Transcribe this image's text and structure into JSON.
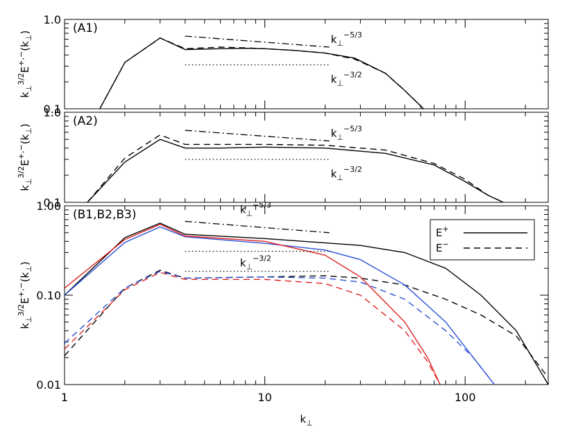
{
  "chart_data": [
    {
      "type": "line",
      "panel_label": "(A1)",
      "ylabel": {
        "base": "k",
        "sub": "⊥",
        "sup": "3/2",
        "rest": "E",
        "rest_sup": "+,−",
        "arg_open": "(k",
        "arg_sub": "⊥",
        "arg_close": ")"
      },
      "xscale": "log",
      "yscale": "log",
      "xlim": [
        1,
        260
      ],
      "ylim": [
        0.1,
        1.0
      ],
      "yticks": [
        {
          "value": 0.1,
          "label": "0.1"
        },
        {
          "value": 1.0,
          "label": "1.0"
        }
      ],
      "series": [
        {
          "name": "E+",
          "style": "solid",
          "color": "#000000",
          "x": [
            1.5,
            2,
            3,
            4,
            6,
            8,
            10,
            14,
            20,
            28,
            40,
            50,
            62
          ],
          "y": [
            0.1,
            0.33,
            0.62,
            0.46,
            0.47,
            0.475,
            0.47,
            0.45,
            0.42,
            0.37,
            0.25,
            0.16,
            0.1
          ]
        },
        {
          "name": "E-",
          "style": "dashed",
          "color": "#000000",
          "x": [
            1.5,
            2,
            3,
            4,
            6,
            8,
            10,
            14,
            20,
            28,
            40,
            50,
            62
          ],
          "y": [
            0.1,
            0.33,
            0.62,
            0.47,
            0.49,
            0.48,
            0.47,
            0.45,
            0.42,
            0.36,
            0.25,
            0.16,
            0.1
          ]
        }
      ],
      "reference_lines": [
        {
          "label_base": "k",
          "label_sub": "⊥",
          "label_sup": "−5/3",
          "style": "dashdot",
          "x": [
            4,
            21
          ],
          "y": [
            0.65,
            0.49
          ]
        },
        {
          "label_base": "k",
          "label_sub": "⊥",
          "label_sup": "−3/2",
          "style": "dotted",
          "x": [
            4,
            21
          ],
          "y": [
            0.31,
            0.31
          ]
        }
      ]
    },
    {
      "type": "line",
      "panel_label": "(A2)",
      "ylabel": {
        "base": "k",
        "sub": "⊥",
        "sup": "3/2",
        "rest": "E",
        "rest_sup": "+,−",
        "arg_open": "(k",
        "arg_sub": "⊥",
        "arg_close": ")"
      },
      "xscale": "log",
      "yscale": "log",
      "xlim": [
        1,
        260
      ],
      "ylim": [
        0.1,
        1.0
      ],
      "yticks": [
        {
          "value": 0.1,
          "label": "0.1"
        },
        {
          "value": 1.0,
          "label": "1.0"
        }
      ],
      "series": [
        {
          "name": "E+",
          "style": "solid",
          "color": "#000000",
          "x": [
            1.3,
            2,
            3,
            4,
            6,
            10,
            20,
            40,
            70,
            100,
            130,
            155
          ],
          "y": [
            0.1,
            0.28,
            0.5,
            0.4,
            0.4,
            0.41,
            0.4,
            0.35,
            0.26,
            0.17,
            0.12,
            0.1
          ]
        },
        {
          "name": "E-",
          "style": "dashed",
          "color": "#000000",
          "x": [
            1.3,
            2,
            3,
            4,
            6,
            10,
            20,
            40,
            70,
            100,
            130,
            155
          ],
          "y": [
            0.1,
            0.31,
            0.56,
            0.44,
            0.44,
            0.44,
            0.43,
            0.38,
            0.27,
            0.18,
            0.12,
            0.1
          ]
        }
      ],
      "reference_lines": [
        {
          "label_base": "k",
          "label_sub": "⊥",
          "label_sup": "−5/3",
          "style": "dashdot",
          "x": [
            4,
            21
          ],
          "y": [
            0.63,
            0.48
          ]
        },
        {
          "label_base": "k",
          "label_sub": "⊥",
          "label_sup": "−3/2",
          "style": "dotted",
          "x": [
            4,
            21
          ],
          "y": [
            0.3,
            0.3
          ]
        }
      ]
    },
    {
      "type": "line",
      "panel_label": "(B1,B2,B3)",
      "ylabel": {
        "base": "k",
        "sub": "⊥",
        "sup": "3/2",
        "rest": "E",
        "rest_sup": "+,−",
        "arg_open": "(k",
        "arg_sub": "⊥",
        "arg_close": ")"
      },
      "xlabel": {
        "base": "k",
        "sub": "⊥"
      },
      "xscale": "log",
      "yscale": "log",
      "xlim": [
        1,
        260
      ],
      "ylim": [
        0.01,
        1.0
      ],
      "xticks": [
        {
          "value": 1,
          "label": "1"
        },
        {
          "value": 10,
          "label": "10"
        },
        {
          "value": 100,
          "label": "100"
        }
      ],
      "yticks": [
        {
          "value": 0.01,
          "label": "0.01"
        },
        {
          "value": 0.1,
          "label": "0.10"
        },
        {
          "value": 1.0,
          "label": "1.00"
        }
      ],
      "legend": {
        "position": "top-right",
        "entries": [
          {
            "name": "E",
            "sup": "+",
            "style": "solid"
          },
          {
            "name": "E",
            "sup": "−",
            "style": "dashed"
          }
        ]
      },
      "series": [
        {
          "name": "B1 E+",
          "style": "solid",
          "color": "#000000",
          "x": [
            1,
            2,
            3,
            4,
            10,
            30,
            50,
            80,
            120,
            180,
            260
          ],
          "y": [
            0.1,
            0.44,
            0.64,
            0.48,
            0.43,
            0.36,
            0.3,
            0.2,
            0.1,
            0.04,
            0.01
          ]
        },
        {
          "name": "B1 E-",
          "style": "dashed",
          "color": "#000000",
          "x": [
            1,
            2,
            3,
            4,
            10,
            20,
            30,
            50,
            80,
            120,
            180,
            260
          ],
          "y": [
            0.021,
            0.12,
            0.19,
            0.155,
            0.16,
            0.165,
            0.155,
            0.13,
            0.09,
            0.06,
            0.035,
            0.012
          ]
        },
        {
          "name": "B2 E+",
          "style": "solid",
          "color": "#2b4fd8",
          "x": [
            1,
            2,
            3,
            4,
            10,
            20,
            30,
            50,
            80,
            110,
            140
          ],
          "y": [
            0.1,
            0.39,
            0.58,
            0.45,
            0.38,
            0.32,
            0.25,
            0.13,
            0.05,
            0.02,
            0.01
          ]
        },
        {
          "name": "B2 E-",
          "style": "dashed",
          "color": "#2b4fd8",
          "x": [
            1,
            2,
            3,
            4,
            10,
            20,
            30,
            50,
            80,
            110,
            140
          ],
          "y": [
            0.029,
            0.12,
            0.185,
            0.155,
            0.16,
            0.155,
            0.14,
            0.09,
            0.04,
            0.02,
            0.01
          ]
        },
        {
          "name": "B3 E+",
          "style": "solid",
          "color": "#e02020",
          "x": [
            1,
            2,
            3,
            4,
            10,
            20,
            30,
            50,
            65,
            75
          ],
          "y": [
            0.12,
            0.42,
            0.62,
            0.46,
            0.4,
            0.28,
            0.16,
            0.05,
            0.02,
            0.01
          ]
        },
        {
          "name": "B3 E-",
          "style": "dashed",
          "color": "#e02020",
          "x": [
            1,
            2,
            3,
            4,
            10,
            20,
            30,
            50,
            65,
            75
          ],
          "y": [
            0.025,
            0.115,
            0.18,
            0.15,
            0.15,
            0.135,
            0.1,
            0.04,
            0.018,
            0.01
          ]
        }
      ],
      "reference_lines": [
        {
          "label_base": "k",
          "label_sub": "⊥",
          "label_sup": "−5/3",
          "style": "dashdot",
          "x": [
            4,
            21
          ],
          "y": [
            0.67,
            0.5
          ]
        },
        {
          "label_base": "k",
          "label_sub": "⊥",
          "label_sup": "−3/2",
          "style": "dotted",
          "x": [
            4,
            21
          ],
          "y": [
            0.31,
            0.31
          ]
        },
        {
          "label_base": "",
          "label_sub": "",
          "label_sup": "",
          "style": "dotted",
          "x": [
            4,
            21
          ],
          "y": [
            0.185,
            0.185
          ]
        }
      ]
    }
  ]
}
